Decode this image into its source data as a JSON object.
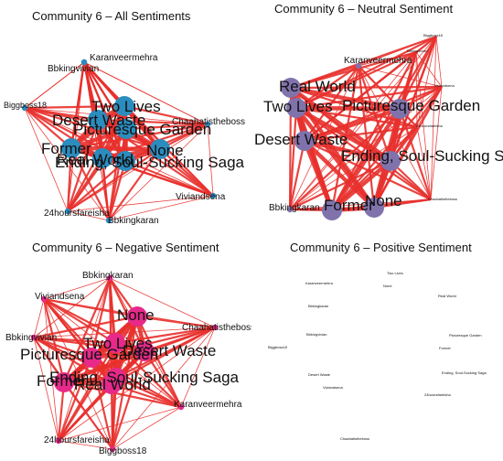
{
  "panels": [
    {
      "id": "all",
      "title": "Community 6 – All Sentiments",
      "color": "#2b8cbe",
      "edge_color": "#e8302c",
      "nodes": [
        {
          "label": "Karanveermehra",
          "size": "small"
        },
        {
          "label": "Bbkingvivian",
          "size": "small"
        },
        {
          "label": "Biggboss18",
          "size": "small"
        },
        {
          "label": "Two Lives",
          "size": "large"
        },
        {
          "label": "Desert Waste",
          "size": "large"
        },
        {
          "label": "Picturesque Garden",
          "size": "large"
        },
        {
          "label": "Chaahatistheboss",
          "size": "small"
        },
        {
          "label": "None",
          "size": "large"
        },
        {
          "label": "Former",
          "size": "large"
        },
        {
          "label": "Real World",
          "size": "large"
        },
        {
          "label": "Ending, Soul-Sucking Saga",
          "size": "large"
        },
        {
          "label": "Viviandsena",
          "size": "small"
        },
        {
          "label": "24hoursfareisha",
          "size": "small"
        },
        {
          "label": "Bbkingkaran",
          "size": "small"
        }
      ]
    },
    {
      "id": "neutral",
      "title": "Community 6 – Neutral Sentiment",
      "color": "#8073ac",
      "edge_color": "#e8302c",
      "nodes": [
        {
          "label": "Biggboss18",
          "size": "tiny"
        },
        {
          "label": "Karanveermehra",
          "size": "small"
        },
        {
          "label": "Bbkingvivian",
          "size": "tiny"
        },
        {
          "label": "Viviandsena",
          "size": "tiny"
        },
        {
          "label": "Real World",
          "size": "large"
        },
        {
          "label": "Two Lives",
          "size": "large"
        },
        {
          "label": "Picturesque Garden",
          "size": "large"
        },
        {
          "label": "24hoursfareisha",
          "size": "tiny"
        },
        {
          "label": "Desert Waste",
          "size": "large"
        },
        {
          "label": "Ending, Soul-Sucking Saga",
          "size": "large"
        },
        {
          "label": "Bbkingkaran",
          "size": "small"
        },
        {
          "label": "Former",
          "size": "large"
        },
        {
          "label": "None",
          "size": "large"
        },
        {
          "label": "Chaahatistheboss",
          "size": "tiny"
        }
      ]
    },
    {
      "id": "negative",
      "title": "Community 6 – Negative Sentiment",
      "color": "#e7298a",
      "edge_color": "#e8302c",
      "nodes": [
        {
          "label": "Bbkingkaran",
          "size": "small"
        },
        {
          "label": "Viviandsena",
          "size": "small"
        },
        {
          "label": "None",
          "size": "large"
        },
        {
          "label": "Bbkingvivian",
          "size": "small"
        },
        {
          "label": "Chaahatistheboss",
          "size": "small"
        },
        {
          "label": "Two Lives",
          "size": "large"
        },
        {
          "label": "Desert Waste",
          "size": "large"
        },
        {
          "label": "Picturesque Garden",
          "size": "large"
        },
        {
          "label": "Ending, Soul-Sucking Saga",
          "size": "large"
        },
        {
          "label": "Former",
          "size": "large"
        },
        {
          "label": "Real World",
          "size": "large"
        },
        {
          "label": "Karanveermehra",
          "size": "small"
        },
        {
          "label": "24hoursfareisha",
          "size": "small"
        },
        {
          "label": "Biggboss18",
          "size": "small"
        }
      ]
    },
    {
      "id": "positive",
      "title": "Community 6 – Positive Sentiment",
      "color": "#ffffff",
      "edge_color": "#e8302c",
      "nodes": [
        {
          "label": "Two Lives",
          "size": "tiny"
        },
        {
          "label": "None",
          "size": "tiny"
        },
        {
          "label": "Karanveermehra",
          "size": "tiny"
        },
        {
          "label": "Real World",
          "size": "tiny"
        },
        {
          "label": "Bbkingkaran",
          "size": "tiny"
        },
        {
          "label": "Bbkingvivian",
          "size": "tiny"
        },
        {
          "label": "Picturesque Garden",
          "size": "tiny"
        },
        {
          "label": "Biggboss18",
          "size": "tiny"
        },
        {
          "label": "Former",
          "size": "tiny"
        },
        {
          "label": "Desert Waste",
          "size": "tiny"
        },
        {
          "label": "Ending, Soul-Sucking Saga",
          "size": "tiny"
        },
        {
          "label": "Viviandsena",
          "size": "tiny"
        },
        {
          "label": "24hoursfareisha",
          "size": "tiny"
        },
        {
          "label": "Chaahatistheboss",
          "size": "tiny"
        }
      ]
    }
  ]
}
